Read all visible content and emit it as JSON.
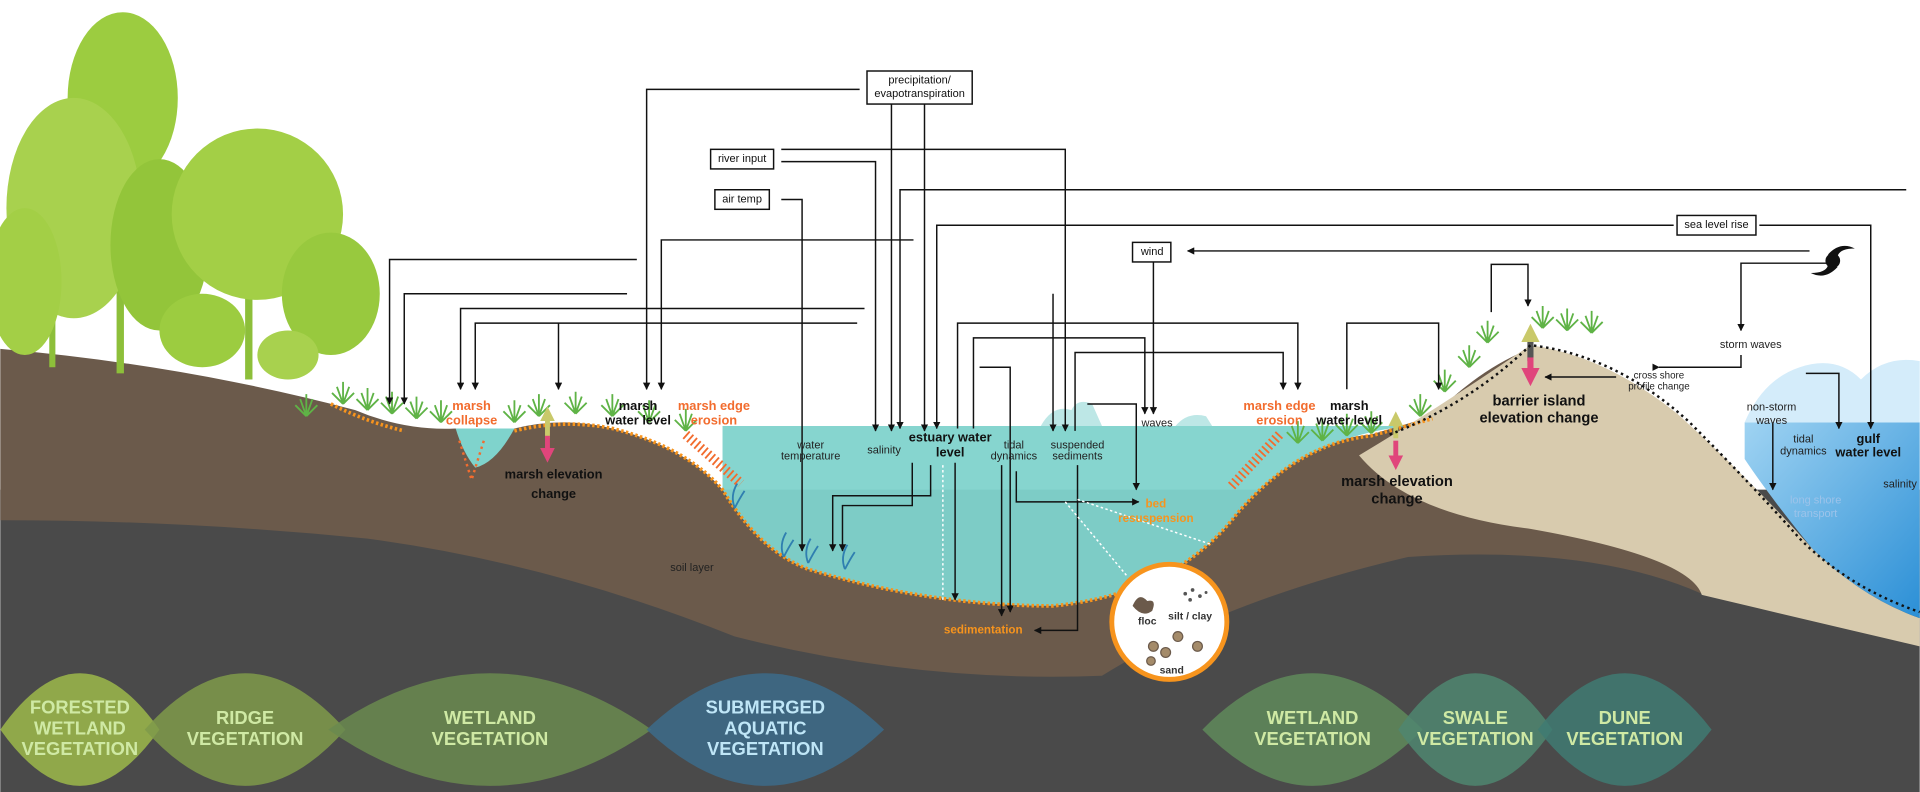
{
  "drivers": [
    [
      "precipitation/",
      "evapotranspiration"
    ],
    [
      "river input"
    ],
    [
      "air temp"
    ],
    [
      "sea level rise"
    ],
    [
      "wind"
    ]
  ],
  "processes": [
    [
      "marsh",
      "collapse"
    ],
    [
      "marsh",
      "water level"
    ],
    [
      "marsh edge",
      "erosion"
    ],
    [
      "marsh elevation",
      "change"
    ],
    [
      "water",
      "temperature"
    ],
    [
      "salinity"
    ],
    [
      "estuary water",
      "level"
    ],
    [
      "tidal",
      "dynamics"
    ],
    [
      "suspended",
      "sediments"
    ],
    [
      "waves"
    ],
    [
      "bed",
      "resuspension"
    ],
    [
      "sedimentation"
    ],
    [
      "marsh edge",
      "erosion"
    ],
    [
      "marsh",
      "water level"
    ],
    [
      "marsh elevation",
      "change"
    ],
    [
      "barrier island",
      "elevation change"
    ],
    [
      "cross shore",
      "profile change"
    ],
    [
      "storm waves"
    ],
    [
      "non-storm",
      "waves"
    ],
    [
      "tidal",
      "dynamics"
    ],
    [
      "gulf",
      "water level"
    ],
    [
      "salinity"
    ],
    [
      "long shore",
      "transport"
    ]
  ],
  "soil_label": "soil layer",
  "sediment_types": [
    "floc",
    "silt / clay",
    "sand"
  ],
  "zones": [
    [
      "FORESTED",
      "WETLAND",
      "VEGETATION"
    ],
    [
      "RIDGE",
      "VEGETATION"
    ],
    [
      "WETLAND",
      "VEGETATION"
    ],
    [
      "SUBMERGED",
      "AQUATIC",
      "VEGETATION"
    ],
    [
      "WETLAND",
      "VEGETATION"
    ],
    [
      "SWALE",
      "VEGETATION"
    ],
    [
      "DUNE",
      "VEGETATION"
    ]
  ]
}
